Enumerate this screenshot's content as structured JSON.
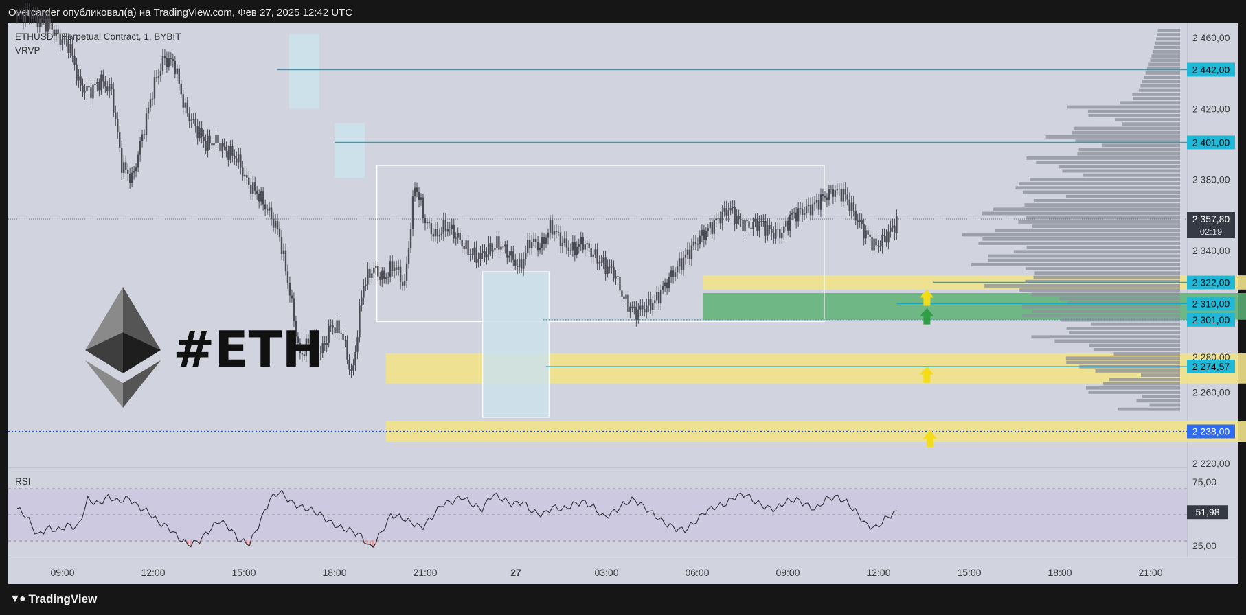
{
  "header": {
    "publisher_line": "Overcarder опубликовал(а) на TradingView.com, Фев 27, 2025 12:42 UTC"
  },
  "footer": {
    "brand": "TradingView",
    "brand_icon": "tradingview-logo-icon"
  },
  "legend": {
    "symbol": "ETHUSDT Perpetual Contract, 1, BYBIT",
    "indicator": "VRVP",
    "rsi_label": "RSI"
  },
  "overlay": {
    "text": "#ETH",
    "icon": "ethereum-logo-icon"
  },
  "colors": {
    "panel_bg": "#d1d4de",
    "candle": "#4a4a52",
    "level_line": "#1fa5c4",
    "yellow_zone": "#f1e28a",
    "green_zone": "#5eb377",
    "support_dotted": "#2350d8",
    "rsi_band": "#c9c6e0",
    "tag_cyan": "#1fb8d6",
    "tag_blue": "#2d6cf0",
    "tag_dark": "#363a45"
  },
  "chart_data": [
    {
      "type": "candlestick",
      "y_axis_ticks": [
        "2 460,00",
        "2 420,00",
        "2 380,00",
        "2 340,00",
        "2 280,00",
        "2 260,00",
        "2 220,00"
      ],
      "x_axis_ticks": [
        "09:00",
        "12:00",
        "15:00",
        "18:00",
        "21:00",
        "27",
        "03:00",
        "06:00",
        "09:00",
        "12:00",
        "15:00",
        "18:00",
        "21:00"
      ],
      "x_axis_bold": "27",
      "price_levels": [
        {
          "value": 2442.0,
          "label": "2 442,00",
          "tag": "cyan"
        },
        {
          "value": 2401.0,
          "label": "2 401,00",
          "tag": "cyan"
        },
        {
          "value": 2322.0,
          "label": "2 322,00",
          "tag": "cyan"
        },
        {
          "value": 2310.0,
          "label": "2 310,00",
          "tag": "cyan"
        },
        {
          "value": 2301.0,
          "label": "2 301,00",
          "tag": "cyan"
        },
        {
          "value": 2274.57,
          "label": "2 274,57",
          "tag": "cyan"
        },
        {
          "value": 2238.0,
          "label": "2 238,00",
          "tag": "blue"
        }
      ],
      "current_price": {
        "value": 2357.8,
        "label": "2 357,80",
        "countdown": "02:19"
      },
      "zones": [
        {
          "color": "yellow",
          "from": 2318,
          "to": 2326
        },
        {
          "color": "green",
          "from": 2301,
          "to": 2316
        },
        {
          "color": "yellow",
          "from": 2265,
          "to": 2282
        },
        {
          "color": "yellow",
          "from": 2232,
          "to": 2244
        }
      ],
      "range_box": {
        "from": 2300,
        "to": 2388
      },
      "price_series": [
        2472,
        2474,
        2470,
        2468,
        2460,
        2456,
        2432,
        2430,
        2436,
        2430,
        2388,
        2380,
        2406,
        2432,
        2448,
        2446,
        2420,
        2410,
        2400,
        2402,
        2396,
        2392,
        2378,
        2372,
        2362,
        2350,
        2318,
        2280,
        2290,
        2282,
        2298,
        2294,
        2268,
        2320,
        2330,
        2324,
        2332,
        2320,
        2378,
        2356,
        2348,
        2354,
        2348,
        2340,
        2336,
        2340,
        2344,
        2338,
        2330,
        2346,
        2342,
        2354,
        2345,
        2340,
        2345,
        2338,
        2332,
        2328,
        2312,
        2305,
        2308,
        2312,
        2322,
        2330,
        2338,
        2346,
        2352,
        2358,
        2364,
        2356,
        2354,
        2356,
        2350,
        2350,
        2360,
        2362,
        2365,
        2370,
        2374,
        2372,
        2360,
        2350,
        2342,
        2348,
        2356
      ]
    },
    {
      "type": "line",
      "name": "RSI",
      "y_axis_ticks": [
        "75,00",
        "25,00"
      ],
      "current": {
        "value": 51.98,
        "label": "51,98"
      },
      "bands": [
        70,
        50,
        30
      ],
      "values": [
        55,
        48,
        34,
        40,
        38,
        42,
        40,
        62,
        58,
        64,
        60,
        63,
        56,
        52,
        44,
        40,
        32,
        27,
        30,
        38,
        46,
        40,
        30,
        28,
        44,
        62,
        68,
        60,
        56,
        54,
        50,
        44,
        40,
        38,
        34,
        24,
        36,
        50,
        48,
        44,
        40,
        48,
        58,
        60,
        64,
        58,
        54,
        66,
        62,
        58,
        60,
        52,
        50,
        56,
        54,
        58,
        60,
        56,
        48,
        52,
        58,
        62,
        56,
        50,
        44,
        40,
        38,
        44,
        52,
        56,
        58,
        64,
        66,
        60,
        56,
        54,
        60,
        62,
        58,
        54,
        62,
        64,
        60,
        52,
        42,
        40,
        48,
        52
      ]
    }
  ]
}
